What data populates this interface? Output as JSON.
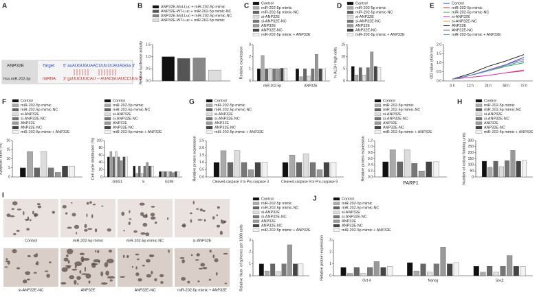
{
  "diagram": {
    "label": "A",
    "gene": "ANP32E",
    "mirna_name": "hsa-miR-202-5p",
    "target_label": "Target:",
    "target_seq": "5'  auAUGUGUAACUUUUUAUAGGa  3'",
    "mirna_label": "miRNA:",
    "mirna_seq": "3'  guUUCUUCAU -- AUACGUAUCCUUu  5'"
  },
  "images": {
    "label": "I",
    "labels": [
      "Control",
      "miR-202-5p mimic",
      "miR-202-5p mimic-NC",
      "si-ANP32E",
      "si-ANP32E-NC",
      "ANP32E",
      "ANP32E-NC",
      "miR-202-5p mimic + ANP32E"
    ]
  },
  "chart_data": [
    {
      "type": "bar",
      "label": "B",
      "ylabel": "Relative luciferase activity",
      "categories": [
        null
      ],
      "ylim": [
        0,
        1.5
      ],
      "yticks": [
        {
          "value": 0,
          "label": "0.0"
        },
        0.5,
        {
          "value": 1,
          "label": "1.0"
        },
        1.5
      ],
      "series": [
        {
          "name": "ANP32E-Mut-Luc + miR-202-5p mimic",
          "color": "#111111",
          "values": [
            1.0
          ]
        },
        {
          "name": "ANP32E-WT-Luc + miR-202-5p mimic-NC",
          "color": "#555555",
          "values": [
            0.93
          ]
        },
        {
          "name": "ANP32E-Mut-Luc + miR-202-5p mimic-NC",
          "color": "#888888",
          "values": [
            0.95
          ]
        },
        {
          "name": "ANP32E-WT-Luc + miR-202-5p mimic",
          "color": "#dddddd",
          "values": [
            0.45
          ]
        }
      ]
    },
    {
      "type": "bar",
      "label": "C",
      "ylabel": "Relative expression",
      "categories": [
        "miR-202-5p",
        "ANP32E"
      ],
      "ylim": [
        0,
        3
      ],
      "yticks": [
        0,
        1,
        2,
        3
      ],
      "series": [
        {
          "name": "Control",
          "color": "#111111",
          "values": [
            1.0,
            1.0
          ]
        },
        {
          "name": "miR-202-5p mimic",
          "color": "#aaaaaa",
          "values": [
            2.1,
            0.35
          ]
        },
        {
          "name": "miR-202-5p mimic-NC",
          "color": "#666666",
          "values": [
            1.0,
            1.0
          ]
        },
        {
          "name": "si-ANP32E",
          "color": "#dddddd",
          "values": [
            1.05,
            0.4
          ]
        },
        {
          "name": "si-ANP32E-NC",
          "color": "#777777",
          "values": [
            1.0,
            1.0
          ]
        },
        {
          "name": "ANP32E",
          "color": "#999999",
          "values": [
            1.0,
            2.2
          ]
        },
        {
          "name": "ANP32E-NC",
          "color": "#444444",
          "values": [
            1.05,
            1.0
          ]
        },
        {
          "name": "miR-202-5p mimic + ANP32E",
          "color": "#f2f2f2",
          "values": [
            1.05,
            1.0
          ]
        }
      ]
    },
    {
      "type": "bar",
      "label": "D",
      "ylabel": "% ALDH high cells",
      "categories": [
        null
      ],
      "ylim": [
        0,
        15
      ],
      "yticks": [
        0,
        5,
        10,
        15
      ],
      "series": [
        {
          "name": "Control",
          "color": "#111111",
          "values": [
            6
          ]
        },
        {
          "name": "miR-202-5p mimic",
          "color": "#aaaaaa",
          "values": [
            2.5
          ]
        },
        {
          "name": "miR-202-5p mimic-NC",
          "color": "#666666",
          "values": [
            5.5
          ]
        },
        {
          "name": "si-ANP32E",
          "color": "#dddddd",
          "values": [
            2.5
          ]
        },
        {
          "name": "si-ANP32E-NC",
          "color": "#777777",
          "values": [
            5.5
          ]
        },
        {
          "name": "ANP32E",
          "color": "#999999",
          "values": [
            12
          ]
        },
        {
          "name": "ANP32E-NC",
          "color": "#444444",
          "values": [
            6
          ]
        },
        {
          "name": "miR-202-5p mimic + ANP32E",
          "color": "#f2f2f2",
          "values": [
            5.5
          ]
        }
      ]
    },
    {
      "type": "line",
      "label": "E",
      "ylabel": "OD value (450 nm)",
      "categories": [
        "0 h",
        "12 h",
        "24 h",
        "48 h",
        "72 h"
      ],
      "ylim": [
        0,
        2
      ],
      "yticks": [
        {
          "value": 0,
          "label": "0.0"
        },
        0.5,
        {
          "value": 1,
          "label": "1.0"
        },
        1.5,
        {
          "value": 2,
          "label": "2.0"
        }
      ],
      "series": [
        {
          "name": "Control",
          "color": "#2244cc",
          "values": [
            0.1,
            0.3,
            0.6,
            0.9,
            1.3
          ]
        },
        {
          "name": "miR-202-5p mimic",
          "color": "#dd2222",
          "values": [
            0.1,
            0.2,
            0.3,
            0.45,
            0.55
          ]
        },
        {
          "name": "miR-202-5p mimic-NC",
          "color": "#22aa44",
          "values": [
            0.1,
            0.3,
            0.55,
            0.8,
            1.0
          ]
        },
        {
          "name": "si-ANP32E",
          "color": "#dd33cc",
          "values": [
            0.1,
            0.2,
            0.3,
            0.45,
            0.6
          ]
        },
        {
          "name": "si-ANP32E-NC",
          "color": "#ee9922",
          "values": [
            0.1,
            0.3,
            0.6,
            0.85,
            1.1
          ]
        },
        {
          "name": "ANP32E",
          "color": "#111111",
          "values": [
            0.1,
            0.4,
            0.8,
            1.1,
            1.45
          ]
        },
        {
          "name": "ANP32E-NC",
          "color": "#8855bb",
          "values": [
            0.1,
            0.3,
            0.6,
            0.9,
            1.2
          ]
        },
        {
          "name": "miR-202-5p mimic + ANP32E",
          "color": "#4499dd",
          "values": [
            0.1,
            0.3,
            0.55,
            0.85,
            1.1
          ]
        }
      ]
    },
    {
      "type": "bar",
      "label": "F",
      "ylabel": "Apoptotic rates (%)",
      "categories": [
        null
      ],
      "ylim": [
        0,
        20
      ],
      "yticks": [
        0,
        5,
        10,
        15,
        20
      ],
      "series": [
        {
          "name": "Control",
          "color": "#111111",
          "values": [
            5
          ]
        },
        {
          "name": "miR-202-5p mimic",
          "color": "#aaaaaa",
          "values": [
            14
          ]
        },
        {
          "name": "miR-202-5p mimic-NC",
          "color": "#666666",
          "values": [
            5
          ]
        },
        {
          "name": "si-ANP32E",
          "color": "#dddddd",
          "values": [
            14
          ]
        },
        {
          "name": "si-ANP32E-NC",
          "color": "#777777",
          "values": [
            5
          ]
        },
        {
          "name": "ANP32E",
          "color": "#999999",
          "values": [
            2.5
          ]
        },
        {
          "name": "ANP32E-NC",
          "color": "#444444",
          "values": [
            6
          ]
        },
        {
          "name": "miR-202-5p mimic + ANP32E",
          "color": "#f2f2f2",
          "values": [
            6
          ]
        }
      ]
    },
    {
      "type": "bar",
      "ylabel": "Cell cycle distribution (%)",
      "categories": [
        "G0/G1",
        "S",
        "G2/M"
      ],
      "ylim": [
        0,
        100
      ],
      "yticks": [
        0,
        20,
        40,
        60,
        80,
        100
      ],
      "series": [
        {
          "name": "Control",
          "color": "#111111",
          "values": [
            55,
            30,
            15
          ]
        },
        {
          "name": "miR-202-5p mimic",
          "color": "#aaaaaa",
          "values": [
            70,
            10,
            15
          ]
        },
        {
          "name": "miR-202-5p mimic-NC",
          "color": "#666666",
          "values": [
            55,
            30,
            15
          ]
        },
        {
          "name": "si-ANP32E",
          "color": "#dddddd",
          "values": [
            70,
            10,
            15
          ]
        },
        {
          "name": "si-ANP32E-NC",
          "color": "#777777",
          "values": [
            55,
            30,
            15
          ]
        },
        {
          "name": "ANP32E",
          "color": "#999999",
          "values": [
            45,
            40,
            12
          ]
        },
        {
          "name": "ANP32E-NC",
          "color": "#444444",
          "values": [
            55,
            30,
            15
          ]
        },
        {
          "name": "miR-202-5p mimic + ANP32E",
          "color": "#f2f2f2",
          "values": [
            55,
            30,
            15
          ]
        }
      ]
    },
    {
      "type": "bar",
      "label": "G",
      "ylabel": "Relative protein expression",
      "categories": [
        "Cleaved-caspase 3 to Pro-caspase 3",
        "Cleaved-caspase 9 to Pro-caspase 9"
      ],
      "ylim": [
        0,
        2.5
      ],
      "yticks": [
        {
          "value": 0,
          "label": "0.0"
        },
        0.5,
        {
          "value": 1,
          "label": "1.0"
        },
        1.5,
        {
          "value": 2,
          "label": "2.0"
        },
        2.5
      ],
      "series": [
        {
          "name": "Control",
          "color": "#111111",
          "values": [
            1.0,
            1.0
          ]
        },
        {
          "name": "miR-202-5p mimic",
          "color": "#aaaaaa",
          "values": [
            1.8,
            1.5
          ]
        },
        {
          "name": "miR-202-5p mimic-NC",
          "color": "#666666",
          "values": [
            1.0,
            1.0
          ]
        },
        {
          "name": "si-ANP32E",
          "color": "#dddddd",
          "values": [
            1.8,
            1.6
          ]
        },
        {
          "name": "si-ANP32E-NC",
          "color": "#777777",
          "values": [
            1.0,
            1.0
          ]
        },
        {
          "name": "ANP32E",
          "color": "#999999",
          "values": [
            0.5,
            0.5
          ]
        },
        {
          "name": "ANP32E-NC",
          "color": "#444444",
          "values": [
            1.0,
            1.0
          ]
        },
        {
          "name": "miR-202-5p mimic + ANP32E",
          "color": "#f2f2f2",
          "values": [
            1.0,
            1.0
          ]
        }
      ]
    },
    {
      "type": "bar",
      "ylabel": "Relative protein expression",
      "xlabel": "PARP1",
      "categories": [
        null
      ],
      "ylim": [
        0,
        1.2
      ],
      "yticks": [
        {
          "value": 0,
          "label": "0.0"
        },
        0.2,
        0.4,
        0.6,
        0.8,
        {
          "value": 1,
          "label": "1.0"
        },
        1.2
      ],
      "series": [
        {
          "name": "Control",
          "color": "#111111",
          "values": [
            0.5
          ]
        },
        {
          "name": "miR-202-5p mimic",
          "color": "#aaaaaa",
          "values": [
            0.9
          ]
        },
        {
          "name": "miR-202-5p mimic-NC",
          "color": "#666666",
          "values": [
            0.5
          ]
        },
        {
          "name": "si-ANP32E",
          "color": "#dddddd",
          "values": [
            0.9
          ]
        },
        {
          "name": "si-ANP32E-NC",
          "color": "#777777",
          "values": [
            0.45
          ]
        },
        {
          "name": "ANP32E",
          "color": "#999999",
          "values": [
            0.2
          ]
        },
        {
          "name": "ANP32E-NC",
          "color": "#444444",
          "values": [
            0.5
          ]
        },
        {
          "name": "miR-202-5p mimic + ANP32E",
          "color": "#f2f2f2",
          "values": [
            0.5
          ]
        }
      ]
    },
    {
      "type": "bar",
      "label": "H",
      "ylabel": "Number of colony forming units",
      "categories": [
        null
      ],
      "ylim": [
        0,
        300
      ],
      "yticks": [
        0,
        50,
        100,
        150,
        200,
        250,
        300
      ],
      "series": [
        {
          "name": "Control",
          "color": "#111111",
          "values": [
            130
          ]
        },
        {
          "name": "miR-202-5p mimic",
          "color": "#aaaaaa",
          "values": [
            80
          ]
        },
        {
          "name": "miR-202-5p mimic-NC",
          "color": "#666666",
          "values": [
            130
          ]
        },
        {
          "name": "si-ANP32E",
          "color": "#dddddd",
          "values": [
            85
          ]
        },
        {
          "name": "si-ANP32E-NC",
          "color": "#777777",
          "values": [
            135
          ]
        },
        {
          "name": "ANP32E",
          "color": "#999999",
          "values": [
            220
          ]
        },
        {
          "name": "ANP32E-NC",
          "color": "#444444",
          "values": [
            130
          ]
        },
        {
          "name": "miR-202-5p mimic + ANP32E",
          "color": "#f2f2f2",
          "values": [
            135
          ]
        }
      ]
    },
    {
      "type": "bar",
      "ylabel": "Relative Num. of spheres per 1000 cells",
      "categories": [
        null
      ],
      "ylim": [
        0,
        3
      ],
      "yticks": [
        0,
        1,
        2,
        3
      ],
      "series": [
        {
          "name": "Control",
          "color": "#111111",
          "values": [
            1.0
          ]
        },
        {
          "name": "miR-202-5p mimic",
          "color": "#aaaaaa",
          "values": [
            0.4
          ]
        },
        {
          "name": "miR-202-5p mimic-NC",
          "color": "#666666",
          "values": [
            1.0
          ]
        },
        {
          "name": "si-ANP32E",
          "color": "#dddddd",
          "values": [
            0.35
          ]
        },
        {
          "name": "si-ANP32E-NC",
          "color": "#777777",
          "values": [
            1.0
          ]
        },
        {
          "name": "ANP32E",
          "color": "#999999",
          "values": [
            2.6
          ]
        },
        {
          "name": "ANP32E-NC",
          "color": "#444444",
          "values": [
            1.0
          ]
        },
        {
          "name": "miR-202-5p mimic + ANP32E",
          "color": "#f2f2f2",
          "values": [
            1.0
          ]
        }
      ]
    },
    {
      "type": "bar",
      "label": "J",
      "ylabel": "Relative protein expression",
      "categories": [
        "Oct-4",
        "Nanog",
        "Sox2"
      ],
      "ylim": [
        0,
        3
      ],
      "yticks": [
        0,
        1,
        2,
        3
      ],
      "series": [
        {
          "name": "Control",
          "color": "#111111",
          "values": [
            0.7,
            1.1,
            0.8
          ]
        },
        {
          "name": "miR-202-5p mimic",
          "color": "#aaaaaa",
          "values": [
            0.2,
            0.4,
            0.3
          ]
        },
        {
          "name": "miR-202-5p mimic-NC",
          "color": "#666666",
          "values": [
            0.7,
            1.0,
            0.8
          ]
        },
        {
          "name": "si-ANP32E",
          "color": "#dddddd",
          "values": [
            0.2,
            0.3,
            0.3
          ]
        },
        {
          "name": "si-ANP32E-NC",
          "color": "#777777",
          "values": [
            0.7,
            1.0,
            0.8
          ]
        },
        {
          "name": "ANP32E",
          "color": "#999999",
          "values": [
            1.2,
            2.4,
            1.7
          ]
        },
        {
          "name": "ANP32E-NC",
          "color": "#444444",
          "values": [
            0.7,
            1.0,
            0.8
          ]
        },
        {
          "name": "miR-202-5p mimic + ANP32E",
          "color": "#f2f2f2",
          "values": [
            0.8,
            1.1,
            0.8
          ]
        }
      ]
    }
  ]
}
